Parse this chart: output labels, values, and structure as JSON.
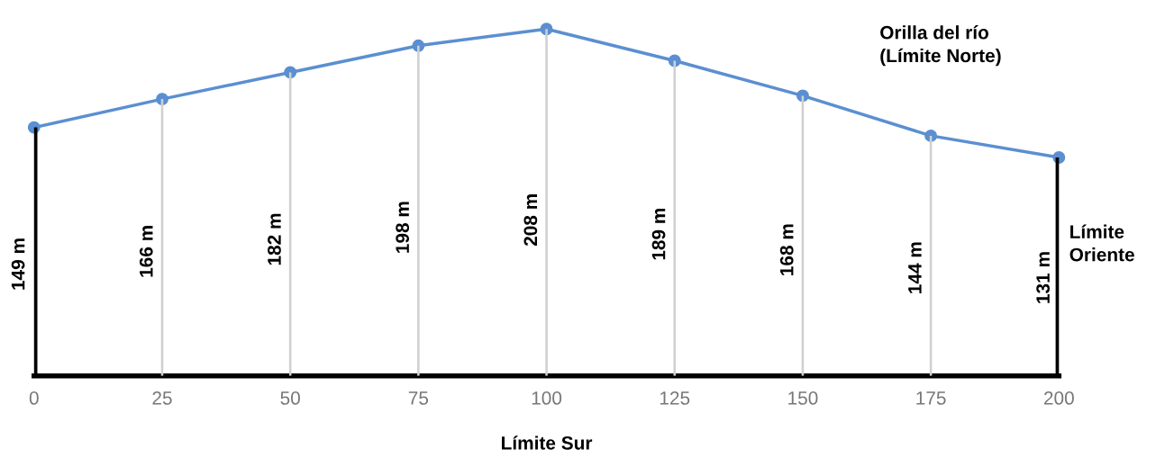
{
  "chart_data": {
    "type": "line",
    "x": [
      0,
      25,
      50,
      75,
      100,
      125,
      150,
      175,
      200
    ],
    "series": [
      {
        "type": "bar",
        "colors": [
          "#000000",
          "#d0d0d0",
          "#d0d0d0",
          "#d0d0d0",
          "#d0d0d0",
          "#d0d0d0",
          "#d0d0d0",
          "#d0d0d0",
          "#000000"
        ],
        "values": [
          149,
          166,
          182,
          198,
          208,
          189,
          168,
          144,
          131
        ],
        "value_labels": [
          "149 m",
          "166 m",
          "182 m",
          "198 m",
          "208 m",
          "189 m",
          "168 m",
          "144 m",
          "131 m"
        ]
      },
      {
        "name": "Orilla del río\n(Límite Norte)",
        "color": "#5b8fd1",
        "values": [
          149,
          166,
          182,
          198,
          208,
          189,
          168,
          144,
          131
        ]
      }
    ],
    "xlabel": "Límite Sur",
    "annotations": [
      "Límite\nOriente"
    ],
    "xlim": [
      0,
      200
    ],
    "xticks": [
      0,
      25,
      50,
      75,
      100,
      125,
      150,
      175,
      200
    ],
    "tick_labels": "x",
    "marker": "circle",
    "line_style": "solid",
    "legend": false
  }
}
